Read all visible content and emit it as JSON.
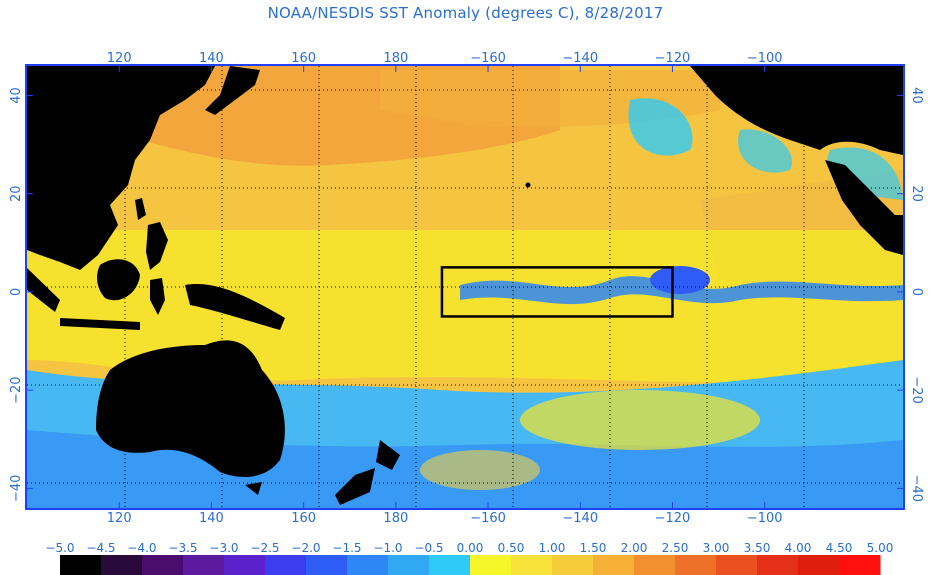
{
  "title": "NOAA/NESDIS SST Anomaly (degrees C), 8/28/2017",
  "map": {
    "lon_range": [
      100,
      290
    ],
    "lat_range": [
      -44,
      46
    ],
    "lon_ticks": [
      {
        "value": 120,
        "label": "120"
      },
      {
        "value": 140,
        "label": "140"
      },
      {
        "value": 160,
        "label": "160"
      },
      {
        "value": 180,
        "label": "180"
      },
      {
        "value": 200,
        "label": "−160"
      },
      {
        "value": 220,
        "label": "−140"
      },
      {
        "value": 240,
        "label": "−120"
      },
      {
        "value": 260,
        "label": "−100"
      }
    ],
    "lat_ticks": [
      {
        "value": 40,
        "label": "40"
      },
      {
        "value": 20,
        "label": "20"
      },
      {
        "value": 0,
        "label": "0"
      },
      {
        "value": -20,
        "label": "−20"
      },
      {
        "value": -40,
        "label": "−40"
      }
    ],
    "nino_box": {
      "lon": [
        190,
        240
      ],
      "lat": [
        -5,
        5
      ]
    },
    "colors": {
      "ocean_warm": "#f5c542",
      "land": "#000000",
      "frame": "#1f40ff",
      "grid": "#000000"
    }
  },
  "colorbar": {
    "labels": [
      "−5.0",
      "−4.5",
      "−4.0",
      "−3.5",
      "−3.0",
      "−2.5",
      "−2.0",
      "−1.5",
      "−1.0",
      "−0.5",
      "0.00",
      "0.50",
      "1.00",
      "1.50",
      "2.00",
      "2.50",
      "3.00",
      "3.50",
      "4.00",
      "4.50",
      "5.00"
    ],
    "colors": [
      "#000000",
      "#2a0a3a",
      "#4a0d6e",
      "#5b1aa0",
      "#5b22cc",
      "#3c3cf0",
      "#2f5cf5",
      "#2f86f5",
      "#30a8f2",
      "#2ecbf7",
      "#f5f52a",
      "#f7e23a",
      "#f5cc3a",
      "#f5b035",
      "#f29030",
      "#ef7028",
      "#ea5020",
      "#e43018",
      "#e01e10",
      "#ff1010"
    ]
  }
}
